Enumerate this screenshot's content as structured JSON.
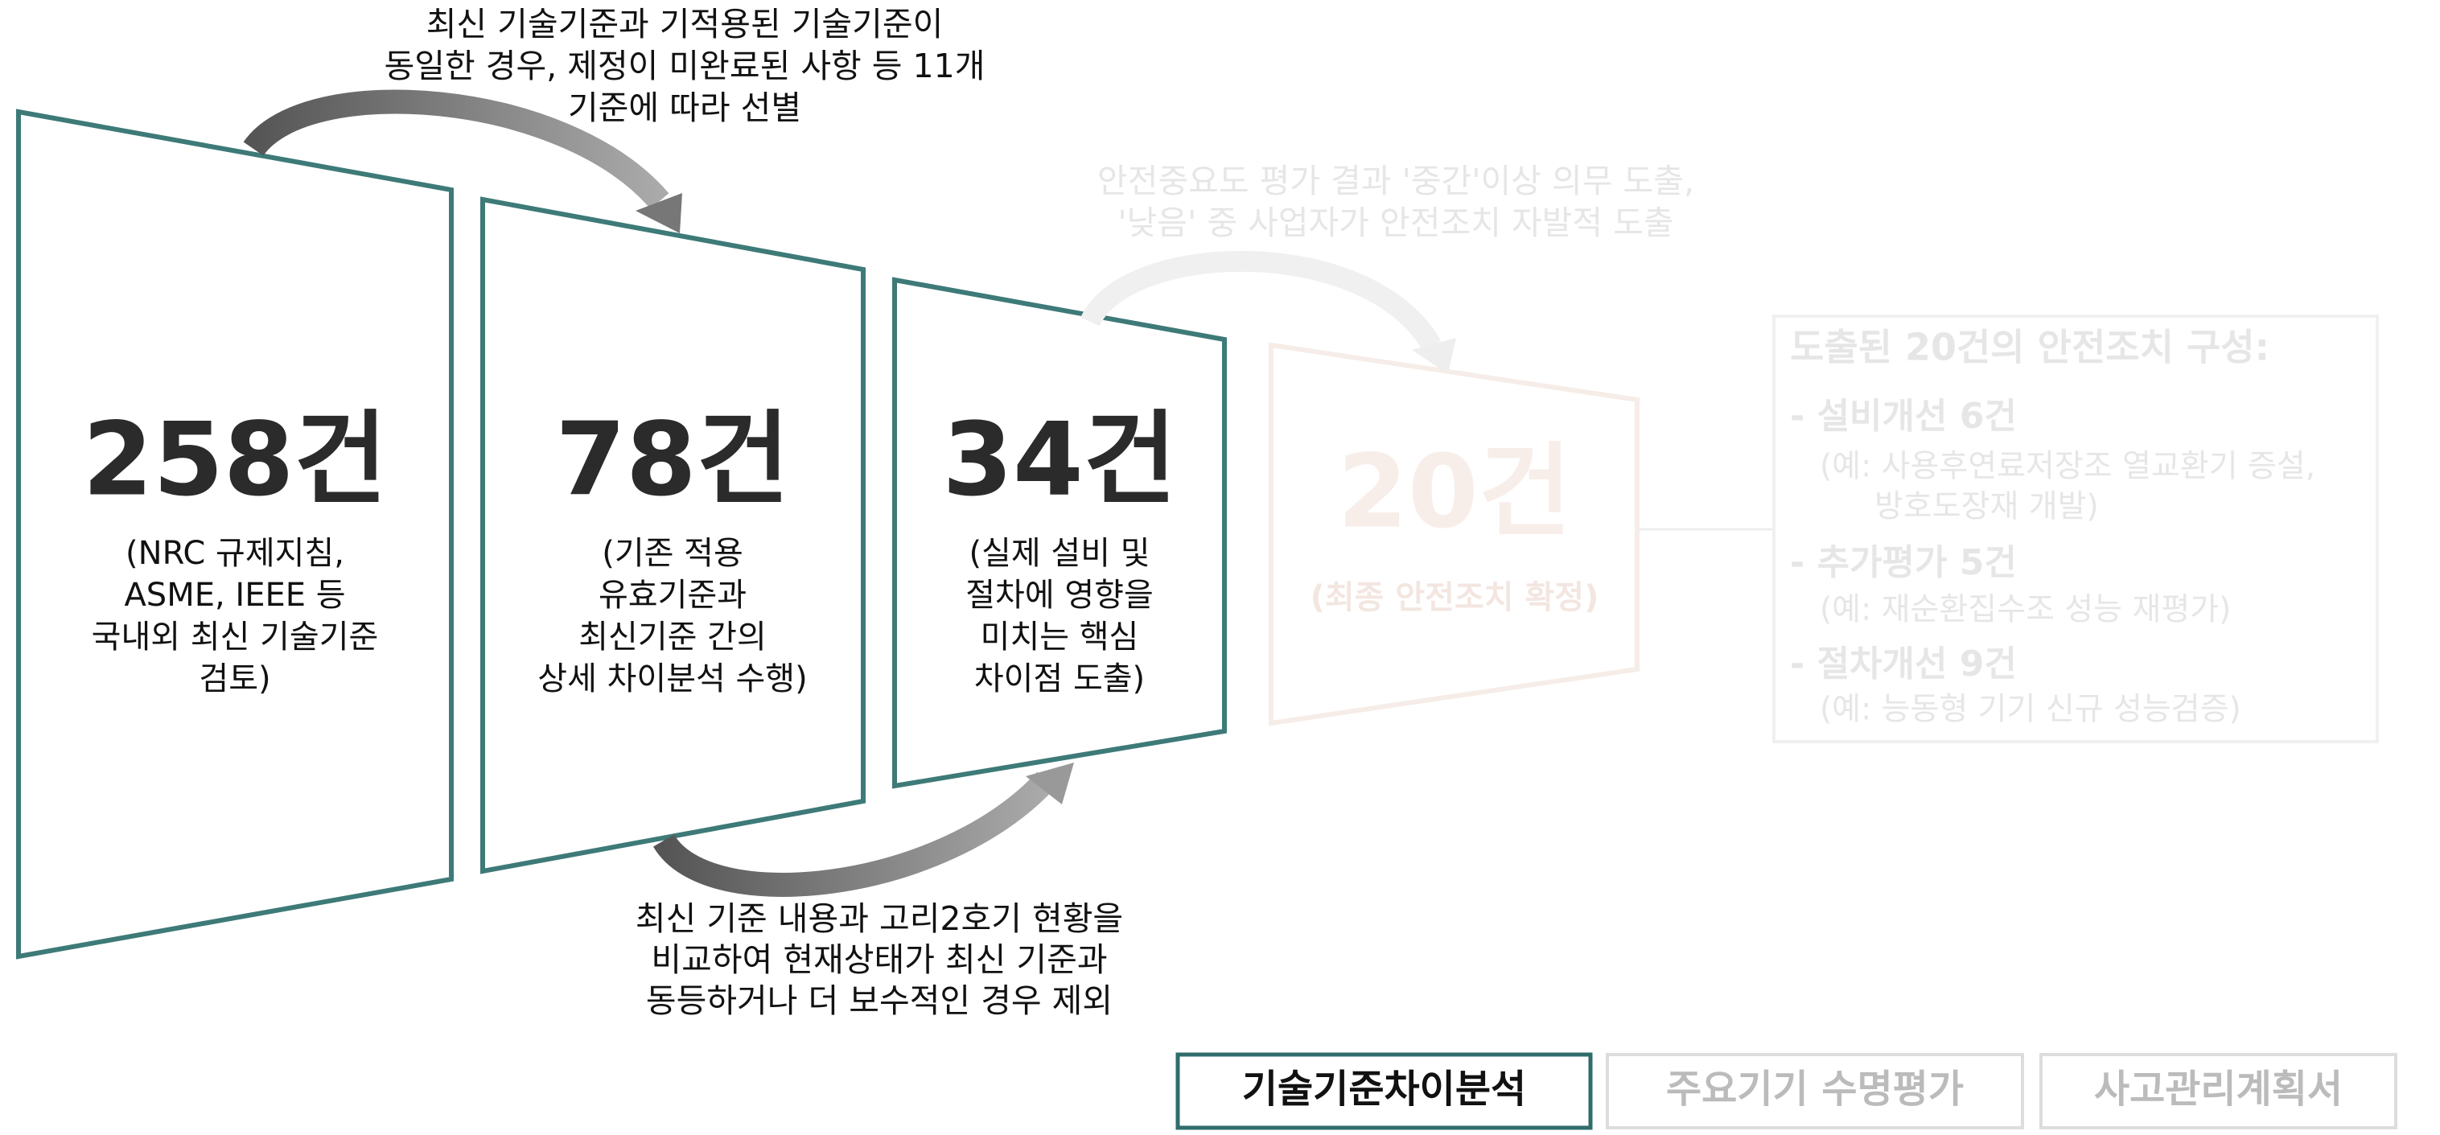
{
  "panels": [
    {
      "count": "258건",
      "desc": [
        "(NRC 규제지침,",
        "ASME, IEEE 등",
        "국내외 최신 기술기준",
        "검토)"
      ]
    },
    {
      "count": "78건",
      "desc": [
        "(기존 적용",
        "유효기준과",
        "최신기준 간의",
        "상세 차이분석 수행)"
      ]
    },
    {
      "count": "34건",
      "desc": [
        "(실제 설비 및",
        "절차에 영향을",
        "미치는 핵심",
        "차이점 도출)"
      ]
    }
  ],
  "top_note": [
    "최신 기술기준과 기적용된 기술기준이",
    "동일한 경우, 제정이 미완료된 사항 등 11개",
    "기준에 따라 선별"
  ],
  "bottom_note": [
    "최신 기준 내용과 고리2호기 현황을",
    "비교하여 현재상태가 최신 기준과",
    "동등하거나 더 보수적인 경우 제외"
  ],
  "faded_note": [
    "안전중요도 평가 결과 '중간'이상 의무 도출,",
    "'낮음' 중 사업자가 안전조치 자발적 도출"
  ],
  "final_panel": {
    "count": "20건",
    "desc": "(최종 안전조치 확정)"
  },
  "summary": {
    "title": "도출된 20건의 안전조치 구성:",
    "items": [
      {
        "heading": "- 설비개선 6건",
        "examples": [
          "(예: 사용후연료저장조 열교환기 증설,",
          "방호도장재 개발)"
        ]
      },
      {
        "heading": "- 추가평가 5건",
        "examples": [
          "(예: 재순환집수조 성능 재평가)"
        ]
      },
      {
        "heading": "- 절차개선 9건",
        "examples": [
          "(예: 능동형 기기 신규 성능검증)"
        ]
      }
    ]
  },
  "tabs": [
    "기술기준차이분석",
    "주요기기 수명평가",
    "사고관리계획서"
  ]
}
